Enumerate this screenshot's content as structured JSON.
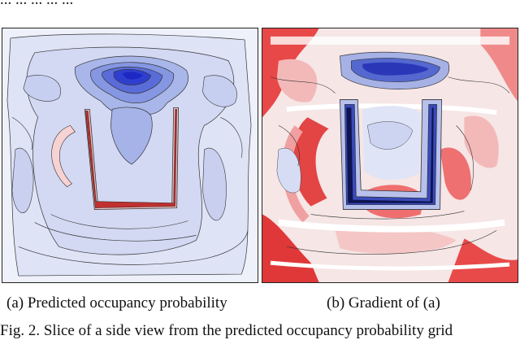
{
  "top_text": "... ... ... ... ...",
  "panel_a": {
    "caption": "(a) Predicted occupancy probability"
  },
  "panel_b": {
    "caption": "(b) Gradient of (a)"
  },
  "figure_caption": "Fig. 2.   Slice of a side view from the predicted occupancy probability grid"
}
